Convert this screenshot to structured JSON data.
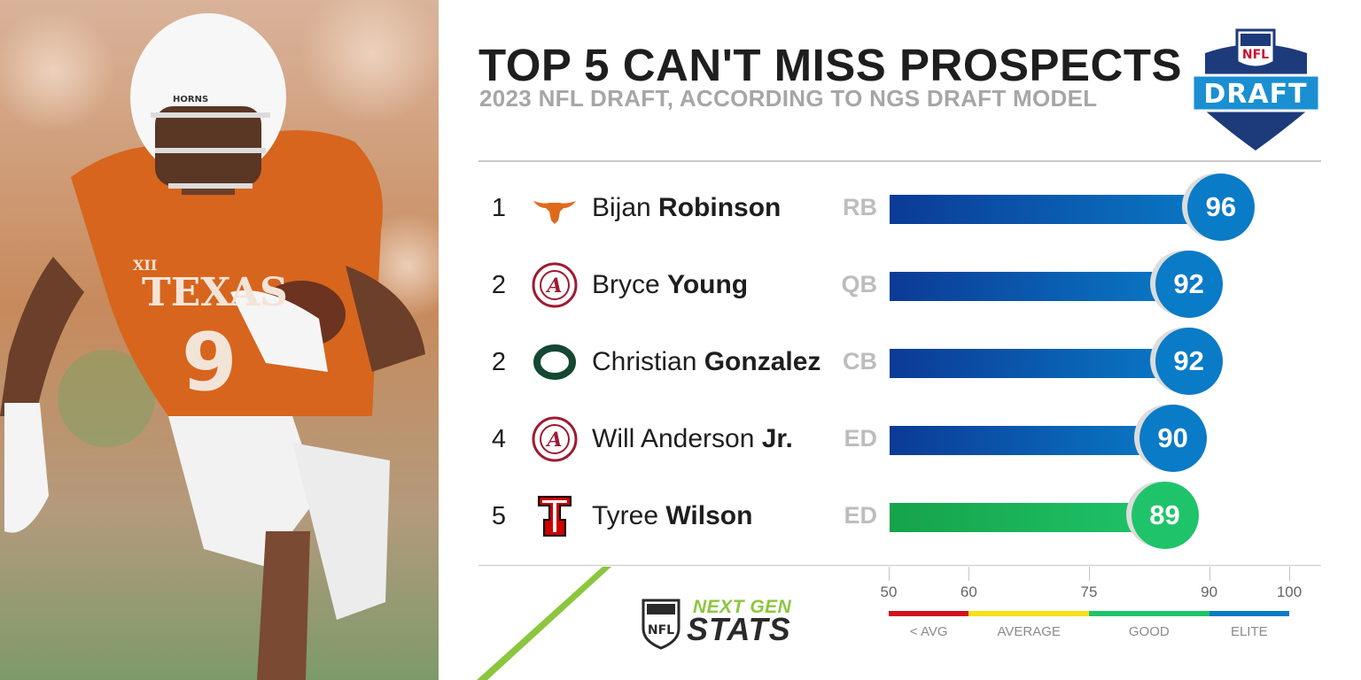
{
  "header": {
    "title": "TOP 5 CAN'T MISS PROSPECTS",
    "subtitle": "2023 NFL DRAFT, ACCORDING TO NGS DRAFT MODEL"
  },
  "draft_logo": {
    "top_text": "NFL",
    "banner_text": "DRAFT"
  },
  "colors": {
    "elite_blue": "#0a7bc7",
    "bar_dark_blue": "#0b3a96",
    "good_green": "#1fc46a",
    "avg_yellow": "#f7e01b",
    "below_red": "#d1121b",
    "accent_lime": "#8cc63f",
    "longhorn_orange": "#e06a1c"
  },
  "chart_data": {
    "type": "bar",
    "orientation": "horizontal",
    "title": "TOP 5 CAN'T MISS PROSPECTS",
    "subtitle": "2023 NFL DRAFT, ACCORDING TO NGS DRAFT MODEL",
    "xlim": [
      50,
      100
    ],
    "grid": false,
    "rows": [
      {
        "rank": "1",
        "first": "Bijan",
        "last": "Robinson",
        "pos": "RB",
        "score": 96,
        "tier": "elite",
        "team_logo": "longhorn-icon"
      },
      {
        "rank": "2",
        "first": "Bryce",
        "last": "Young",
        "pos": "QB",
        "score": 92,
        "tier": "elite",
        "team_logo": "alabama-icon"
      },
      {
        "rank": "2",
        "first": "Christian",
        "last": "Gonzalez",
        "pos": "CB",
        "score": 92,
        "tier": "elite",
        "team_logo": "oregon-icon"
      },
      {
        "rank": "4",
        "first": "Will Anderson",
        "last": "Jr.",
        "pos": "ED",
        "score": 90,
        "tier": "elite",
        "team_logo": "alabama-icon"
      },
      {
        "rank": "5",
        "first": "Tyree",
        "last": "Wilson",
        "pos": "ED",
        "score": 89,
        "tier": "good",
        "team_logo": "texas-tech-icon"
      }
    ],
    "scale": {
      "ticks": [
        "50",
        "60",
        "75",
        "90",
        "100"
      ],
      "segments": [
        {
          "label": "< AVG",
          "from": 50,
          "to": 60,
          "color": "#d1121b"
        },
        {
          "label": "AVERAGE",
          "from": 60,
          "to": 75,
          "color": "#f7e01b"
        },
        {
          "label": "GOOD",
          "from": 75,
          "to": 90,
          "color": "#1fc46a"
        },
        {
          "label": "ELITE",
          "from": 90,
          "to": 100,
          "color": "#0a7bc7"
        }
      ]
    }
  },
  "footer": {
    "brand_top": "NEXT GEN",
    "brand_bottom": "STATS",
    "shield_text": "NFL"
  },
  "photo": {
    "jersey_text": "TEXAS",
    "jersey_number": "9",
    "helmet_text": "HORNS",
    "patch_text": "XII"
  }
}
